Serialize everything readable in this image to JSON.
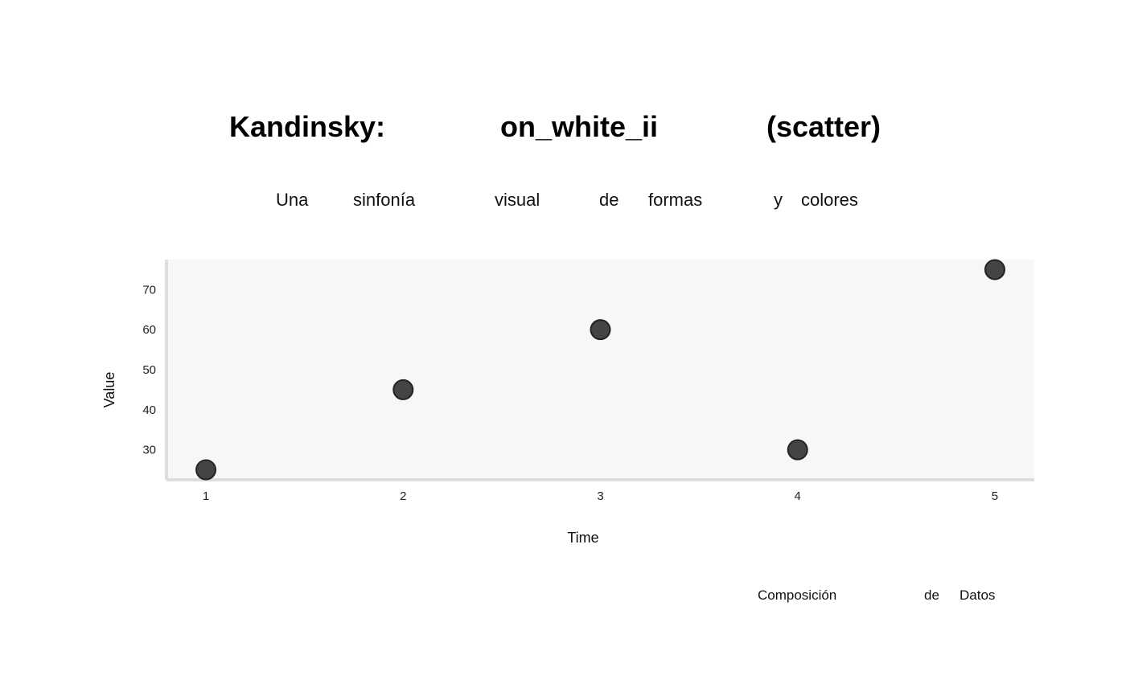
{
  "chart_data": {
    "type": "scatter",
    "title_words": [
      "Kandinsky:",
      "on_white_ii",
      "(scatter)"
    ],
    "subtitle_words": [
      "Una",
      "sinfonía",
      "visual",
      "de",
      "formas",
      "y",
      "colores"
    ],
    "xlabel": "Time",
    "ylabel": "Value",
    "x_ticks": [
      "1",
      "2",
      "3",
      "4",
      "5"
    ],
    "y_ticks": [
      "30",
      "40",
      "50",
      "60",
      "70"
    ],
    "xlim": [
      0.8,
      5.2
    ],
    "ylim": [
      22.5,
      77.5
    ],
    "grid": false,
    "points": [
      {
        "x": 1,
        "y": 25
      },
      {
        "x": 2,
        "y": 45
      },
      {
        "x": 3,
        "y": 60
      },
      {
        "x": 4,
        "y": 30
      },
      {
        "x": 5,
        "y": 75
      }
    ],
    "footer_words": [
      "Composición",
      "de",
      "Datos"
    ],
    "colors": {
      "background": "#ffffff",
      "plot_background": "#f7f7f7",
      "axis": "#dddddd",
      "marker_fill": "#444444",
      "marker_stroke": "#222222"
    }
  }
}
